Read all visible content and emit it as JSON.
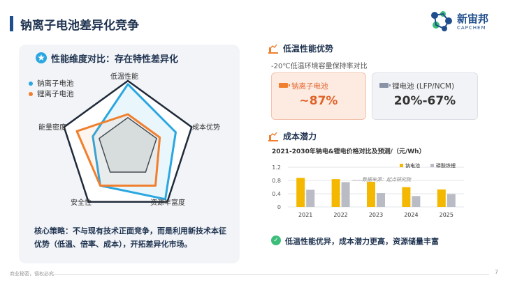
{
  "header": {
    "title": "钠离子电池差异化竞争",
    "logo_cn": "新宙邦",
    "logo_en": "CAPCHEM"
  },
  "left_panel": {
    "title": "性能维度对比：存在特性差异化",
    "legend": [
      {
        "name": "钠离子电池",
        "color": "#2aa7e0"
      },
      {
        "name": "锂离子电池",
        "color": "#f07f2e"
      }
    ],
    "axes": [
      "低温性能",
      "成本优势",
      "资源丰富度",
      "安全性",
      "能量密度"
    ],
    "strategy": "核心策略：不与现有技术正面竞争，而是利用新技术本征优势（低温、倍率、成本），开拓差异化市场。"
  },
  "radar_data": {
    "scale_max": 1,
    "series": [
      {
        "name": "钠离子电池",
        "values": [
          0.95,
          0.75,
          0.95,
          0.7,
          0.55
        ]
      },
      {
        "name": "锂离子电池",
        "values": [
          0.5,
          0.5,
          0.7,
          0.7,
          0.8
        ]
      }
    ]
  },
  "low_temp": {
    "title": "低温性能优势",
    "note": "-20℃低温环境容量保持率对比",
    "na_label": "钠离子电池",
    "na_value": "~87%",
    "li_label": "锂电池 (LFP/NCM)",
    "li_value": "20%-67%"
  },
  "cost": {
    "title": "成本潜力",
    "chart_title": "2021-2030年钠电&锂电价格对比及预测/（元/Wh）",
    "source": "——数据来源：起点研究院",
    "highlight": "低温性能优异，成本潜力更高，资源储量丰富"
  },
  "chart_data": {
    "type": "bar",
    "categories": [
      "2021",
      "2022",
      "2023",
      "2024",
      "2025"
    ],
    "series": [
      {
        "name": "钠电池",
        "values": [
          0.88,
          0.84,
          0.76,
          0.6,
          0.53
        ]
      },
      {
        "name": "磷酸铁锂",
        "values": [
          0.52,
          0.75,
          0.42,
          0.33,
          0.39
        ]
      }
    ],
    "yticks": [
      "0",
      "0.4",
      "0.8",
      "1.2"
    ],
    "ylim": [
      0,
      1.2
    ],
    "colors": [
      "#f5b800",
      "#b9bcc4"
    ],
    "legend_position": "top-right",
    "grid": true
  },
  "footer": {
    "confidential": "商业秘密，侵权必究",
    "page": "7"
  }
}
